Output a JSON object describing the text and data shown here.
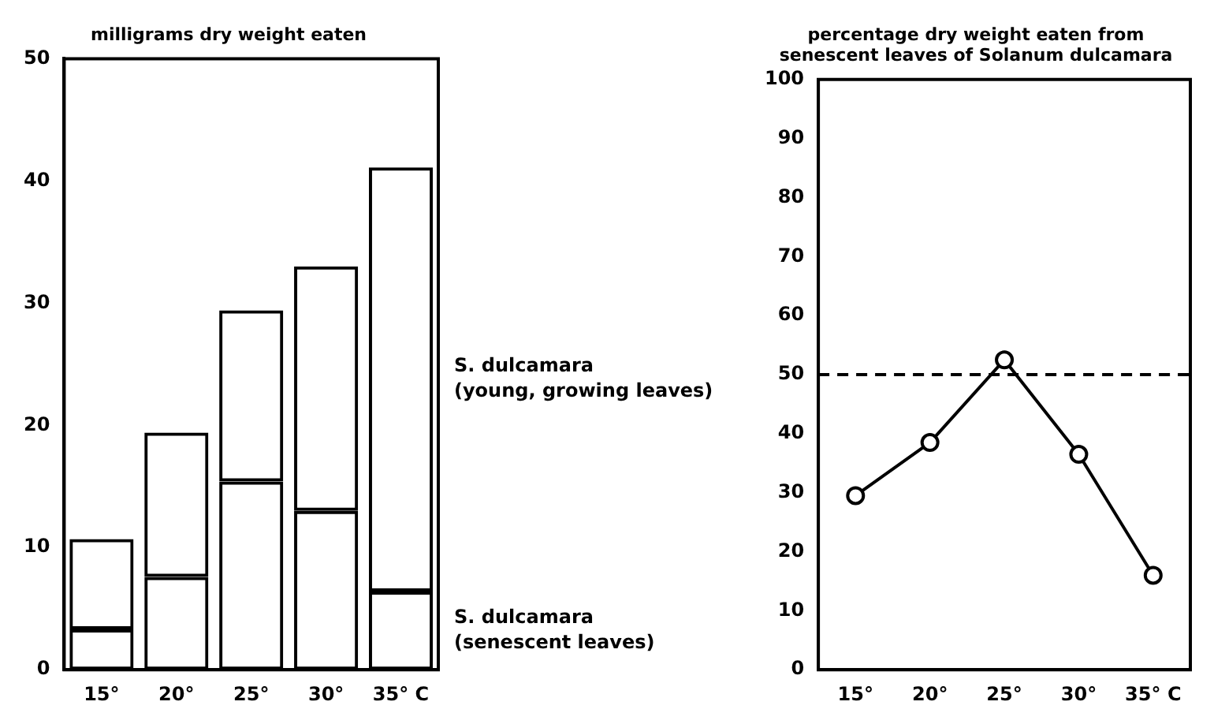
{
  "chart_data": [
    {
      "type": "bar",
      "title": "milligrams dry weight eaten",
      "categories": [
        "15°",
        "20°",
        "25°",
        "30°",
        "35° C"
      ],
      "stacked": true,
      "legend": false,
      "grid": false,
      "ylim": [
        0,
        50
      ],
      "yticks": [
        0,
        10,
        20,
        30,
        40,
        50
      ],
      "series": [
        {
          "name": "S. dulcamara (senescent leaves)",
          "color": "#000000",
          "values": [
            3.3,
            7.6,
            15.4,
            13.0,
            6.4
          ]
        },
        {
          "name": "S. dulcamara (young, growing leaves)",
          "color": "#000000",
          "values": [
            7.4,
            11.8,
            14.0,
            20.0,
            34.7
          ]
        }
      ]
    },
    {
      "type": "line",
      "title": "percentage dry weight eaten from senescent leaves of Solanum dulcamara",
      "categories": [
        "15°",
        "20°",
        "25°",
        "30°",
        "35° C"
      ],
      "legend": false,
      "grid": false,
      "marker": "circle",
      "line_style": "solid",
      "ylim": [
        0,
        100
      ],
      "yticks": [
        0,
        10,
        20,
        30,
        40,
        50,
        60,
        70,
        80,
        90,
        100
      ],
      "series": [
        {
          "color": "#000000",
          "values": [
            29.5,
            38.5,
            52.5,
            36.5,
            16
          ]
        }
      ],
      "ref_lines": [
        {
          "axis": "y",
          "value": 50,
          "color": "#000000",
          "line_style": "dashed"
        }
      ]
    }
  ]
}
